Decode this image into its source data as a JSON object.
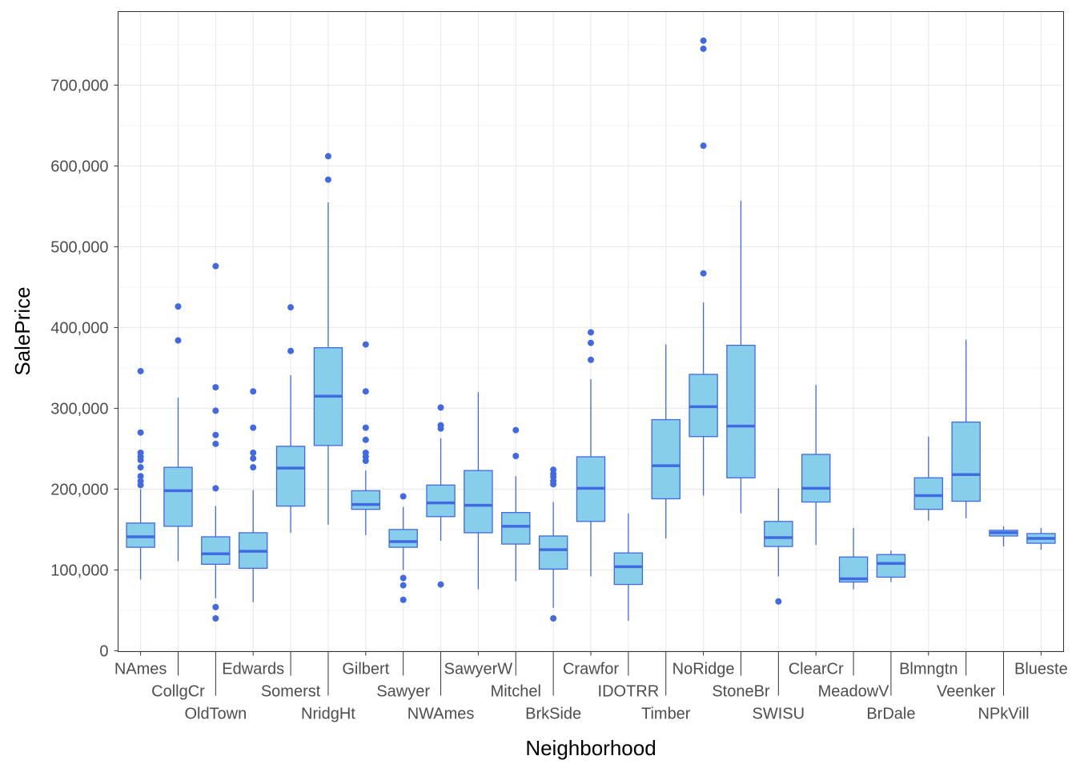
{
  "chart_data": {
    "type": "boxplot",
    "xlabel": "Neighborhood",
    "ylabel": "SalePrice",
    "ylim": [
      -1100,
      791000
    ],
    "yticks": [
      0,
      100000,
      200000,
      300000,
      400000,
      500000,
      600000,
      700000
    ],
    "ytick_labels": [
      "0",
      "100,000",
      "200,000",
      "300,000",
      "400,000",
      "500,000",
      "600,000",
      "700,000"
    ],
    "grid": true,
    "colors": {
      "fill": "#87CEEB",
      "stroke": "#4169E1",
      "grid_major": "#EBEBEB",
      "grid_minor": "#F5F5F5"
    },
    "categories": [
      "NAmes",
      "CollgCr",
      "OldTown",
      "Edwards",
      "Somerst",
      "NridgHt",
      "Gilbert",
      "Sawyer",
      "NWAmes",
      "SawyerW",
      "Mitchel",
      "BrkSide",
      "Crawfor",
      "IDOTRR",
      "Timber",
      "NoRidge",
      "StoneBr",
      "SWISU",
      "ClearCr",
      "MeadowV",
      "BrDale",
      "Blmngtn",
      "Veenker",
      "NPkVill",
      "Blueste"
    ],
    "boxes": [
      {
        "low": 88000,
        "q1": 128000,
        "median": 141000,
        "q3": 158000,
        "high": 200000,
        "outliers": [
          205000,
          210000,
          216000,
          227000,
          236000,
          240000,
          245000,
          270000,
          346000
        ]
      },
      {
        "low": 111000,
        "q1": 154000,
        "median": 198000,
        "q3": 227000,
        "high": 313000,
        "outliers": [
          384000,
          426000
        ]
      },
      {
        "low": 65000,
        "q1": 107000,
        "median": 120000,
        "q3": 141000,
        "high": 179000,
        "outliers": [
          40000,
          54000,
          201000,
          256000,
          267000,
          297000,
          326000,
          476000
        ]
      },
      {
        "low": 60000,
        "q1": 102000,
        "median": 123000,
        "q3": 146000,
        "high": 199000,
        "outliers": [
          227000,
          238000,
          245000,
          276000,
          321000
        ]
      },
      {
        "low": 146000,
        "q1": 179000,
        "median": 226000,
        "q3": 253000,
        "high": 341000,
        "outliers": [
          371000,
          425000
        ]
      },
      {
        "low": 156000,
        "q1": 254000,
        "median": 315000,
        "q3": 375000,
        "high": 555000,
        "outliers": [
          583000,
          612000
        ]
      },
      {
        "low": 143000,
        "q1": 175000,
        "median": 181000,
        "q3": 198000,
        "high": 223000,
        "outliers": [
          235000,
          240000,
          245000,
          261000,
          276000,
          321000,
          379000
        ]
      },
      {
        "low": 100000,
        "q1": 128000,
        "median": 135000,
        "q3": 150000,
        "high": 178000,
        "outliers": [
          63000,
          81000,
          90000,
          191000
        ]
      },
      {
        "low": 136000,
        "q1": 166000,
        "median": 183000,
        "q3": 205000,
        "high": 263000,
        "outliers": [
          82000,
          275000,
          279000,
          301000
        ]
      },
      {
        "low": 76000,
        "q1": 146000,
        "median": 180000,
        "q3": 223000,
        "high": 320000,
        "outliers": []
      },
      {
        "low": 86000,
        "q1": 132000,
        "median": 154000,
        "q3": 171000,
        "high": 216000,
        "outliers": [
          241000,
          273000
        ]
      },
      {
        "low": 53000,
        "q1": 101000,
        "median": 125000,
        "q3": 142000,
        "high": 184000,
        "outliers": [
          40000,
          206000,
          210000,
          215000,
          219000,
          224000
        ]
      },
      {
        "low": 92000,
        "q1": 160000,
        "median": 201000,
        "q3": 240000,
        "high": 336000,
        "outliers": [
          360000,
          381000,
          394000
        ]
      },
      {
        "low": 37000,
        "q1": 82000,
        "median": 104000,
        "q3": 121000,
        "high": 170000,
        "outliers": []
      },
      {
        "low": 139000,
        "q1": 188000,
        "median": 229000,
        "q3": 286000,
        "high": 379000,
        "outliers": []
      },
      {
        "low": 192000,
        "q1": 265000,
        "median": 302000,
        "q3": 342000,
        "high": 431000,
        "outliers": [
          467000,
          625000,
          745000,
          755000
        ]
      },
      {
        "low": 170000,
        "q1": 214000,
        "median": 278000,
        "q3": 378000,
        "high": 557000,
        "outliers": []
      },
      {
        "low": 92000,
        "q1": 129000,
        "median": 140000,
        "q3": 160000,
        "high": 201000,
        "outliers": [
          61000
        ]
      },
      {
        "low": 131000,
        "q1": 184000,
        "median": 201000,
        "q3": 243000,
        "high": 329000,
        "outliers": []
      },
      {
        "low": 76000,
        "q1": 85000,
        "median": 89000,
        "q3": 116000,
        "high": 152000,
        "outliers": []
      },
      {
        "low": 85000,
        "q1": 91000,
        "median": 108000,
        "q3": 119000,
        "high": 124000,
        "outliers": []
      },
      {
        "low": 161000,
        "q1": 175000,
        "median": 192000,
        "q3": 214000,
        "high": 265000,
        "outliers": []
      },
      {
        "low": 164000,
        "q1": 185000,
        "median": 218000,
        "q3": 283000,
        "high": 385000,
        "outliers": []
      },
      {
        "low": 129000,
        "q1": 142000,
        "median": 146000,
        "q3": 149000,
        "high": 154000,
        "outliers": []
      },
      {
        "low": 125000,
        "q1": 133000,
        "median": 139000,
        "q3": 145000,
        "high": 152000,
        "outliers": []
      }
    ]
  }
}
